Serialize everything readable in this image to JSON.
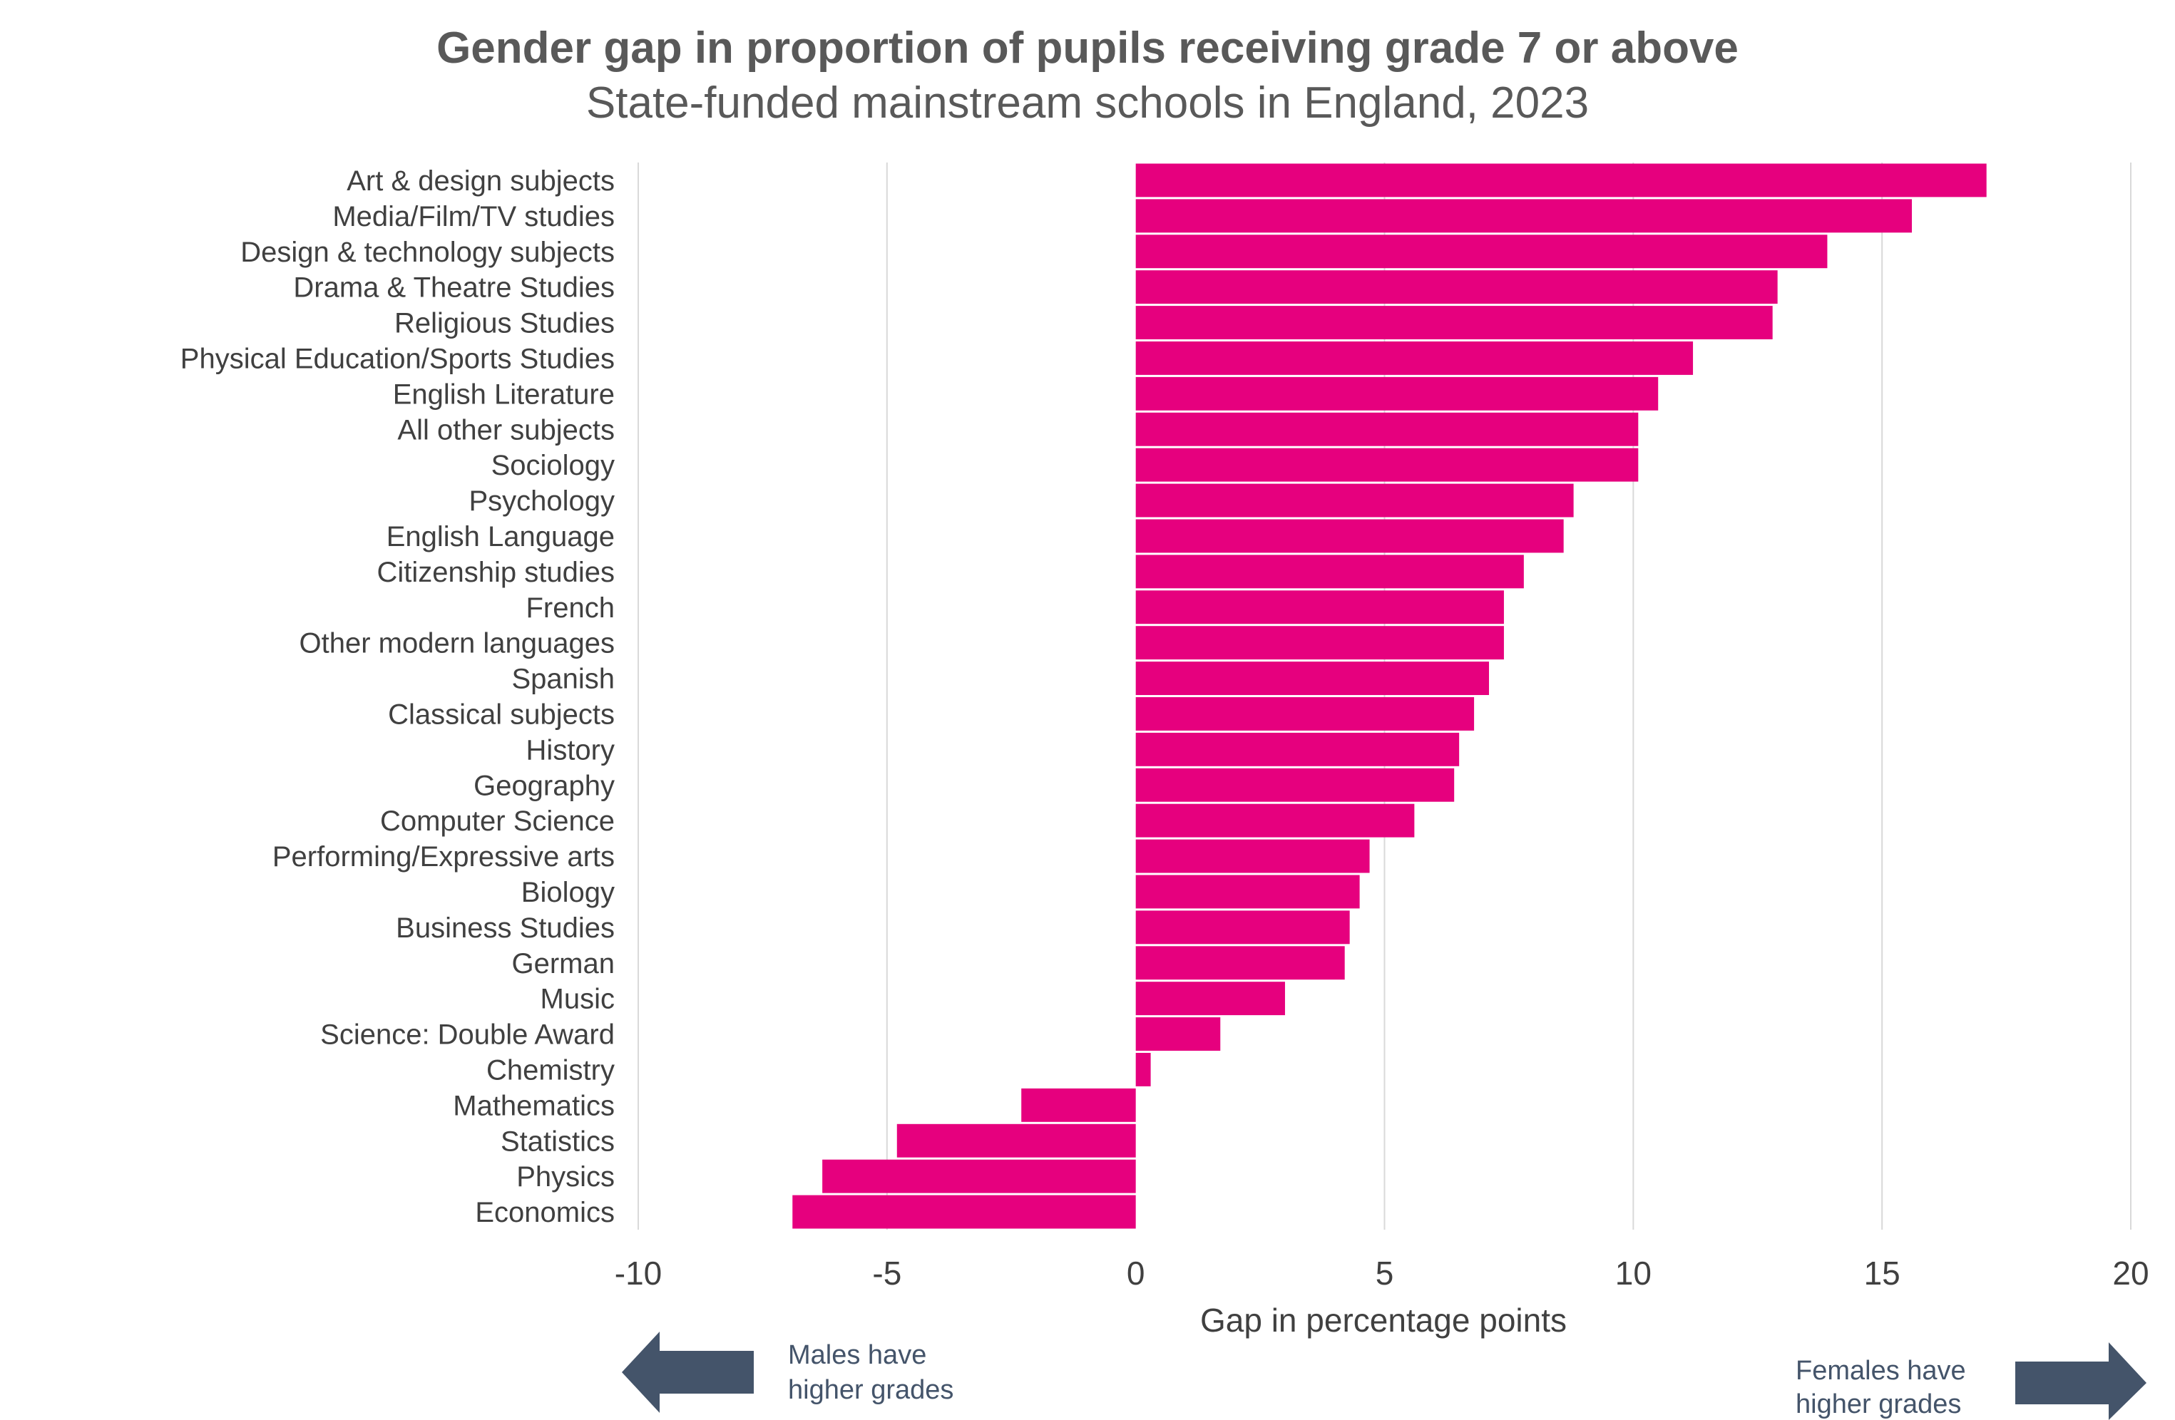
{
  "chart_data": {
    "type": "bar",
    "orientation": "horizontal",
    "title": "Gender gap in proportion of pupils receiving grade 7 or above",
    "subtitle": "State-funded mainstream schools in England, 2023",
    "xlabel": "Gap in percentage points",
    "ylabel": "",
    "xlim": [
      -10,
      20
    ],
    "xticks": [
      -10,
      -5,
      0,
      5,
      10,
      15,
      20
    ],
    "grid": "vertical",
    "bar_color": "#E6007E",
    "categories": [
      "Art & design subjects",
      "Media/Film/TV studies",
      "Design & technology subjects",
      "Drama & Theatre Studies",
      "Religious Studies",
      "Physical Education/Sports Studies",
      "English Literature",
      "All other subjects",
      "Sociology",
      "Psychology",
      "English Language",
      "Citizenship studies",
      "French",
      "Other modern languages",
      "Spanish",
      "Classical subjects",
      "History",
      "Geography",
      "Computer Science",
      "Performing/Expressive arts",
      "Biology",
      "Business Studies",
      "German",
      "Music",
      "Science: Double Award",
      "Chemistry",
      "Mathematics",
      "Statistics",
      "Physics",
      "Economics"
    ],
    "values": [
      17.1,
      15.6,
      13.9,
      12.9,
      12.8,
      11.2,
      10.5,
      10.1,
      10.1,
      8.8,
      8.6,
      7.8,
      7.4,
      7.4,
      7.1,
      6.8,
      6.5,
      6.4,
      5.6,
      4.7,
      4.5,
      4.3,
      4.2,
      3.0,
      1.7,
      0.3,
      -2.3,
      -4.8,
      -6.3,
      -6.9
    ]
  },
  "annotations": {
    "left_arrow_text": [
      "Males have",
      "higher grades"
    ],
    "right_arrow_text": [
      "Females have",
      "higher grades"
    ],
    "arrow_color": "#44546A"
  }
}
